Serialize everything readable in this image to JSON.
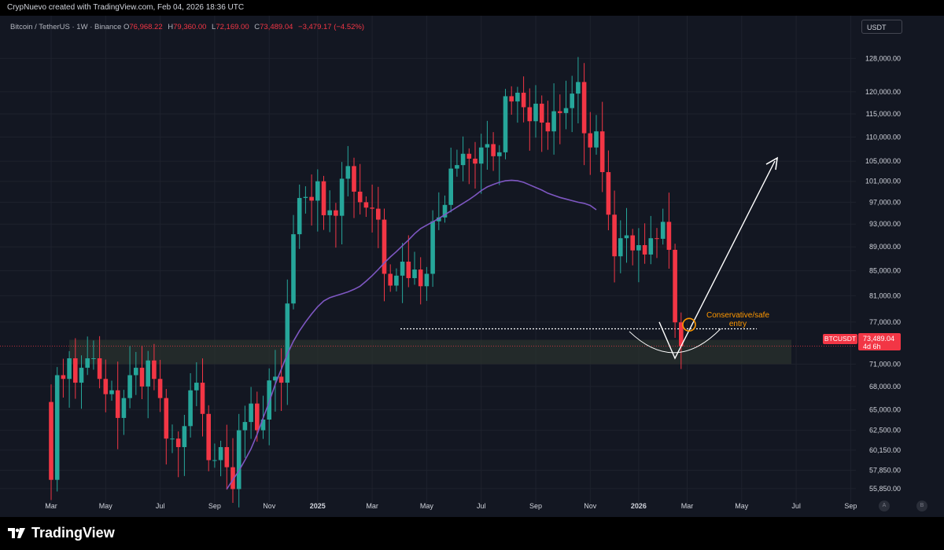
{
  "header": {
    "credit": "CrypNuevo created with TradingView.com, Feb 04, 2026 18:36 UTC"
  },
  "legend": {
    "symbol": "Bitcoin / TetherUS · 1W · Binance",
    "o_label": "O",
    "o_value": "76,968.22",
    "h_label": "H",
    "h_value": "79,360.00",
    "l_label": "L",
    "l_value": "72,169.00",
    "c_label": "C",
    "c_value": "73,489.04",
    "change": "−3,479.17 (−4.52%)"
  },
  "currency_button": "USDT",
  "price_tag": {
    "symbol": "BTCUSDT",
    "price": "73,489.04",
    "countdown": "4d 6h"
  },
  "axis_buttons": {
    "auto": "A",
    "log": "B"
  },
  "footer": {
    "brand": "TradingView"
  },
  "colors": {
    "background": "#131722",
    "up": "#26a69a",
    "down": "#f23645",
    "ma": "#7e57c2",
    "annotation": "#ffffff",
    "entry": "#ff9800",
    "zone": "#2a312e",
    "grid": "#1e222d"
  },
  "chart_data": {
    "type": "candlestick",
    "title": "",
    "scale": "log",
    "grid": true,
    "ylim": [
      54500,
      132000
    ],
    "y_ticks": [
      {
        "value": 128000,
        "label": "128,000.00"
      },
      {
        "value": 120000,
        "label": "120,000.00"
      },
      {
        "value": 115000,
        "label": "115,000.00"
      },
      {
        "value": 110000,
        "label": "110,000.00"
      },
      {
        "value": 105000,
        "label": "105,000.00"
      },
      {
        "value": 101000,
        "label": "101,000.00"
      },
      {
        "value": 97000,
        "label": "97,000.00"
      },
      {
        "value": 93000,
        "label": "93,000.00"
      },
      {
        "value": 89000,
        "label": "89,000.00"
      },
      {
        "value": 85000,
        "label": "85,000.00"
      },
      {
        "value": 81000,
        "label": "81,000.00"
      },
      {
        "value": 77000,
        "label": "77,000.00"
      },
      {
        "value": 71000,
        "label": "71,000.00"
      },
      {
        "value": 68000,
        "label": "68,000.00"
      },
      {
        "value": 65000,
        "label": "65,000.00"
      },
      {
        "value": 62500,
        "label": "62,500.00"
      },
      {
        "value": 60150,
        "label": "60,150.00"
      },
      {
        "value": 57850,
        "label": "57,850.00"
      },
      {
        "value": 55850,
        "label": "55,850.00"
      }
    ],
    "x_labels": [
      {
        "label": "Mar",
        "week": 0,
        "bold": false
      },
      {
        "label": "May",
        "week": 9,
        "bold": false
      },
      {
        "label": "Jul",
        "week": 18,
        "bold": false
      },
      {
        "label": "Sep",
        "week": 27,
        "bold": false
      },
      {
        "label": "Nov",
        "week": 36,
        "bold": false
      },
      {
        "label": "2025",
        "week": 44,
        "bold": true
      },
      {
        "label": "Mar",
        "week": 53,
        "bold": false
      },
      {
        "label": "May",
        "week": 62,
        "bold": false
      },
      {
        "label": "Jul",
        "week": 71,
        "bold": false
      },
      {
        "label": "Sep",
        "week": 80,
        "bold": false
      },
      {
        "label": "Nov",
        "week": 89,
        "bold": false
      },
      {
        "label": "2026",
        "week": 97,
        "bold": true
      },
      {
        "label": "Mar",
        "week": 105,
        "bold": false
      },
      {
        "label": "May",
        "week": 114,
        "bold": false
      },
      {
        "label": "Jul",
        "week": 123,
        "bold": false
      },
      {
        "label": "Sep",
        "week": 132,
        "bold": false
      }
    ],
    "closes": [
      56800,
      69500,
      69000,
      71800,
      68500,
      70500,
      71800,
      71800,
      69000,
      67000,
      67500,
      64000,
      66500,
      69500,
      70500,
      68000,
      71500,
      69000,
      66500,
      61500,
      61500,
      60500,
      63000,
      67500,
      68500,
      64500,
      59000,
      59000,
      60500,
      58200,
      55800,
      62500,
      63500,
      65800,
      62500,
      63800,
      68800,
      69300,
      68500,
      79800,
      91200,
      97800,
      98000,
      97300,
      101000,
      94600,
      95500,
      94500,
      101500,
      104000,
      99000,
      97000,
      96000,
      95800,
      93800,
      84500,
      82600,
      84200,
      86500,
      83800,
      85200,
      82500,
      84500,
      93500,
      94200,
      96500,
      103500,
      104200,
      106500,
      105500,
      104500,
      107800,
      108500,
      106000,
      106800,
      119000,
      117800,
      119800,
      116500,
      113400,
      117300,
      113100,
      111200,
      115600,
      115200,
      116300,
      119600,
      122300,
      110800,
      107800,
      111200,
      102800,
      94700,
      87400,
      90500,
      91000,
      88400,
      89300,
      87700,
      90500,
      90400,
      93400,
      88500,
      76950,
      73480
    ],
    "ma_line": {
      "series_start": 29,
      "approx_values": [
        55800,
        56800,
        57800,
        59000,
        60300,
        62000,
        64000,
        66000,
        68300,
        70300,
        72400,
        74200,
        75700,
        77000,
        78200,
        79300,
        80200,
        80700,
        81000,
        81300,
        81600,
        82000,
        82500,
        83300,
        84200,
        85200,
        86300,
        87300,
        88200,
        89200,
        90200,
        91300,
        92200,
        92800,
        93400,
        94000,
        94700,
        95400,
        96100,
        96800,
        97500,
        98300,
        99200,
        99900,
        100400,
        100800,
        101100,
        101200,
        101100,
        100800,
        100300,
        99800,
        99300,
        98700,
        98300,
        97900,
        97600,
        97300,
        97000,
        96800,
        96400,
        95600
      ]
    },
    "annotations": {
      "support_level": 76000,
      "zone_range": [
        71000,
        74400
      ],
      "current_price": 73489.04,
      "entry_label": "Conservative/safe\nentry"
    }
  }
}
